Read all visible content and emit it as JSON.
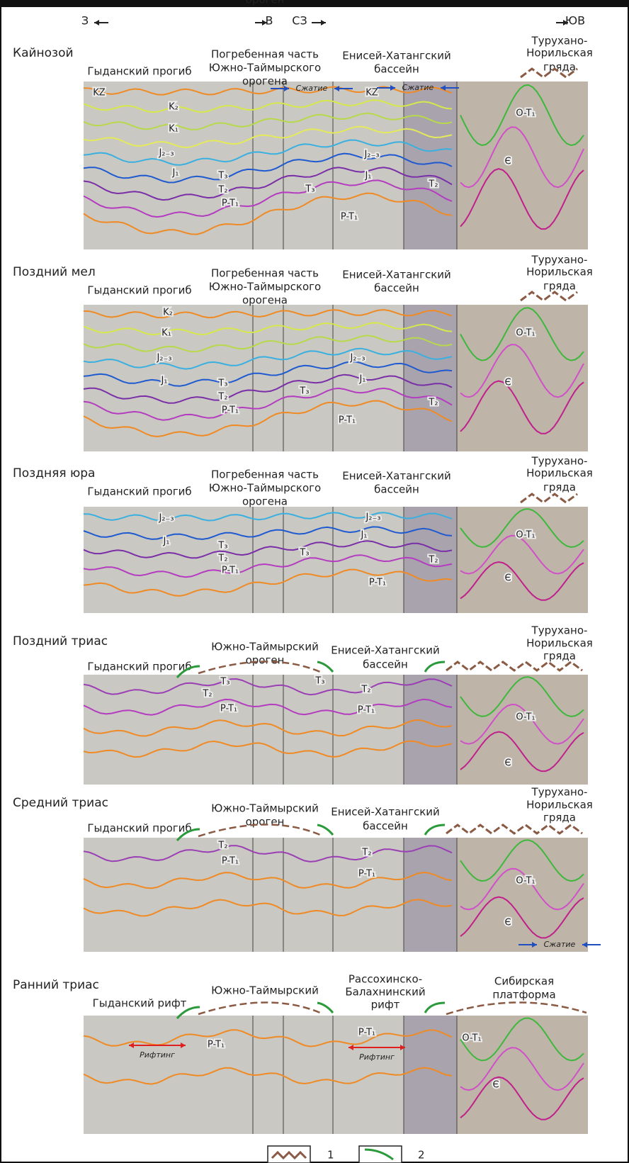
{
  "directions": [
    "З",
    "В",
    "СЗ",
    "ЮВ"
  ],
  "panels": [
    {
      "title": "Кайнозой",
      "regions": [
        [
          "Гыданский прогиб"
        ],
        [
          "Погребенная часть",
          "Южно-Таймырского",
          "орогена"
        ],
        [
          "Енисей-Хатангский",
          "бассейн"
        ],
        [
          "Турухано-",
          "Норильская",
          "гряда"
        ]
      ],
      "layers": [
        "KZ",
        "K₂",
        "K₁",
        "J₂₋₃",
        "J₁",
        "T₃",
        "T₂",
        "P-T₁",
        "J₂₋₃",
        "KZ",
        "J₁",
        "T₃",
        "T₂",
        "P-T₁",
        "O-T₁",
        "Є"
      ],
      "notes": [
        "Сжатие",
        "Сжатие"
      ]
    },
    {
      "title": "Поздний мел",
      "regions": [
        [
          "Гыданский прогиб"
        ],
        [
          "Погребенная часть",
          "Южно-Таймырского",
          "орогена"
        ],
        [
          "Енисей-Хатангский",
          "бассейн"
        ],
        [
          "Турухано-",
          "Норильская",
          "гряда"
        ]
      ],
      "layers": [
        "K₂",
        "K₁",
        "J₂₋₃",
        "J₁",
        "T₃",
        "T₂",
        "P-T₁",
        "T₃",
        "J₂₋₃",
        "J₁",
        "T₂",
        "P-T₁",
        "O-T₁",
        "Є"
      ]
    },
    {
      "title": "Поздняя юра",
      "regions": [
        [
          "Гыданский прогиб"
        ],
        [
          "Погребенная часть",
          "Южно-Таймырского",
          "орогена"
        ],
        [
          "Енисей-Хатангский",
          "бассейн"
        ],
        [
          "Турухано-",
          "Норильская",
          "гряда"
        ]
      ],
      "layers": [
        "J₂₋₃",
        "J₁",
        "T₃",
        "T₂",
        "P-T₁",
        "J₂₋₃",
        "J₁",
        "T₃",
        "T₂",
        "P-T₁",
        "O-T₁",
        "Є"
      ]
    },
    {
      "title": "Поздний триас",
      "regions": [
        [
          "Гыданский прогиб"
        ],
        [
          "Южно-Таймырский",
          "ороген"
        ],
        [
          "Енисей-Хатангский",
          "бассейн"
        ],
        [
          "Турухано-",
          "Норильская",
          "гряда"
        ]
      ],
      "layers": [
        "T₃",
        "T₂",
        "P-T₁",
        "T₃",
        "T₂",
        "P-T₁",
        "O-T₁",
        "Є"
      ]
    },
    {
      "title": "Средний триас",
      "regions": [
        [
          "Гыданский прогиб"
        ],
        [
          "Южно-Таймырский",
          "ороген"
        ],
        [
          "Енисей-Хатангский",
          "бассейн"
        ],
        [
          "Турухано-",
          "Норильская",
          "гряда"
        ]
      ],
      "layers": [
        "T₂",
        "P-T₁",
        "T₂",
        "P-T₁",
        "O-T₁",
        "Є"
      ],
      "notes": [
        "Сжатие"
      ]
    },
    {
      "title": "Ранний триас",
      "regions": [
        [
          "Гыданский рифт"
        ],
        [
          "Южно-Таймырский",
          "ороген"
        ],
        [
          "Рассохинско-",
          "Балахнинский",
          "рифт"
        ],
        [
          "Сибирская",
          "платформа"
        ]
      ],
      "layers": [
        "P-T₁",
        "P-T₁",
        "O-T₁",
        "Є"
      ],
      "notes": [
        "Рифтинг",
        "Рифтинг"
      ]
    }
  ],
  "legend": [
    "1",
    "2"
  ]
}
